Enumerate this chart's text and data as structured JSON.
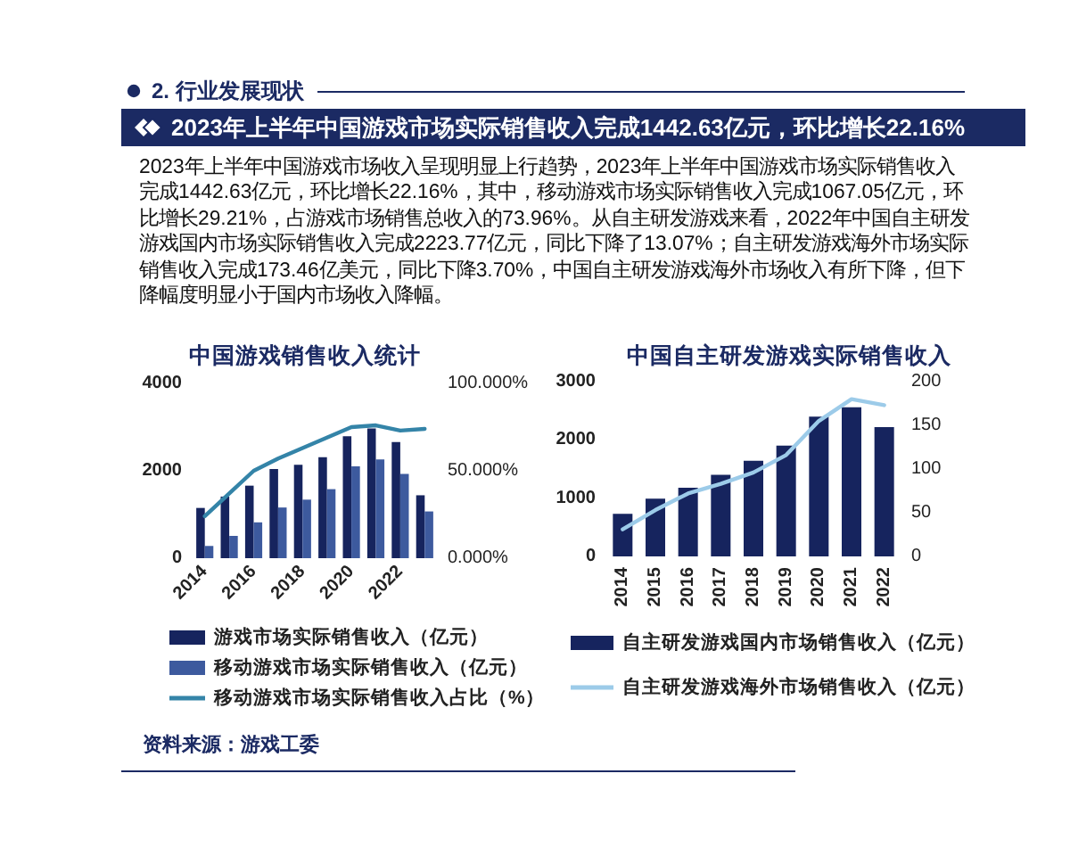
{
  "chart_data": [
    {
      "type": "other",
      "title": "2023年上半年中国游戏市场实际销售收入完成1442.63亿元，环比增长22.16%",
      "annotations": [
        "2. 行业发展现状",
        "2023年上半年中国游戏市场收入呈现明显上行趋势，2023年上半年中国游戏市场实际销售收入完成1442.63亿元，环比增长22.16%，其中，移动游戏市场实际销售收入完成1067.05亿元，环比增长29.21%，占游戏市场销售总收入的73.96%。从自主研发游戏来看，2022年中国自主研发游戏国内市场实际销售收入完成2223.77亿元，同比下降了13.07%；自主研发游戏海外市场实际销售收入完成173.46亿美元，同比下降3.70%，中国自主研发游戏海外市场收入有所下降，但下降幅度明显小于国内市场收入降幅。"
      ]
    },
    {
      "type": "bar",
      "title": "中国游戏销售收入统计",
      "categories": [
        "2014",
        null,
        "2016",
        null,
        "2018",
        null,
        "2020",
        null,
        "2022",
        null
      ],
      "series": [
        {
          "name": "游戏市场实际销售收入（亿元）",
          "color": "#16245e",
          "values": [
            1150,
            1410,
            1660,
            2040,
            2140,
            2310,
            2790,
            2970,
            2660,
            1440
          ]
        },
        {
          "name": "移动游戏市场实际销售收入（亿元）",
          "color": "#3d5a9e",
          "values": [
            280,
            510,
            820,
            1160,
            1340,
            1580,
            2100,
            2260,
            1930,
            1070
          ]
        },
        {
          "name": "移动游戏市场实际销售收入占比（%）",
          "type": "line",
          "axis": "y2",
          "color": "#3484a8",
          "values": [
            24,
            37,
            50,
            57,
            63,
            69,
            75,
            76,
            73,
            74
          ]
        }
      ],
      "ylim": [
        0,
        4000
      ],
      "yticks": [
        0,
        2000,
        4000
      ],
      "y2lim": [
        0,
        100
      ],
      "y2ticks": [
        {
          "value": 0,
          "label": "0.000%"
        },
        {
          "value": 50,
          "label": "50.000%"
        },
        {
          "value": 100,
          "label": "100.000%"
        }
      ],
      "grid": false,
      "legend": "bottom",
      "marker": "none",
      "line_style": "solid",
      "annotations": [
        "资料来源：游戏工委"
      ]
    },
    {
      "type": "bar",
      "title": "中国自主研发游戏实际销售收入",
      "categories": [
        "2014",
        "2015",
        "2016",
        "2017",
        "2018",
        "2019",
        "2020",
        "2021",
        "2022"
      ],
      "series": [
        {
          "name": "自主研发游戏国内市场销售收入（亿元）",
          "color": "#16245e",
          "values": [
            730,
            990,
            1180,
            1400,
            1640,
            1900,
            2400,
            2560,
            2220
          ]
        },
        {
          "name": "自主研发游戏海外市场销售收入（亿元）",
          "type": "line",
          "axis": "y2",
          "color": "#9ccbe9",
          "values": [
            31,
            53,
            72,
            83,
            96,
            116,
            155,
            180,
            173
          ]
        }
      ],
      "ylim": [
        0,
        3000
      ],
      "yticks": [
        0,
        1000,
        2000,
        3000
      ],
      "y2lim": [
        0,
        200
      ],
      "y2ticks": [
        0,
        50,
        100,
        150,
        200
      ],
      "grid": false,
      "legend": "bottom",
      "marker": "none",
      "line_style": "solid"
    }
  ]
}
